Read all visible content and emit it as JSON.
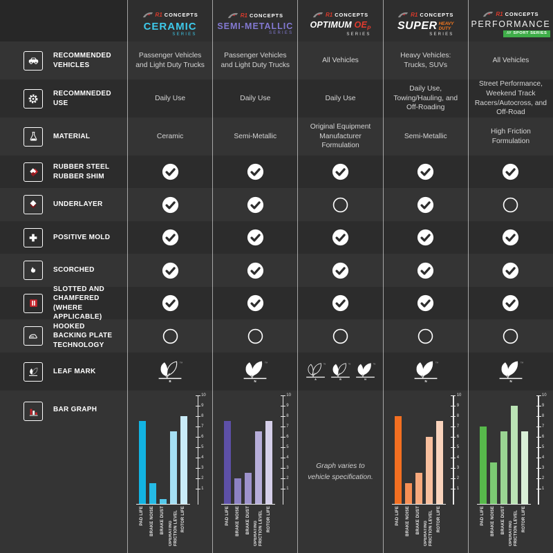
{
  "brand": {
    "logo_r1": "R1",
    "logo_name": "CONCEPTS"
  },
  "leaf_tm": "TM",
  "left_rows": [
    {
      "label": "RECOMMENDED VEHICLES",
      "icon": "car-icon"
    },
    {
      "label": "RECOMMNEDED USE",
      "icon": "gear-icon"
    },
    {
      "label": "MATERIAL",
      "icon": "flask-icon"
    },
    {
      "label": "RUBBER STEEL RUBBER SHIM",
      "icon": "rubber-shim-icon"
    },
    {
      "label": "UNDERLAYER",
      "icon": "underlayer-icon"
    },
    {
      "label": "POSITIVE MOLD",
      "icon": "positive-mold-icon"
    },
    {
      "label": "SCORCHED",
      "icon": "flame-icon"
    },
    {
      "label": "SLOTTED AND CHAMFERED (WHERE APPLICABLE)",
      "icon": "slotted-icon"
    },
    {
      "label": "HOOKED BACKING PLATE TECHNOLOGY",
      "icon": "backing-plate-icon"
    },
    {
      "label": "LEAF MARK",
      "icon": "leaf-icon"
    },
    {
      "label": "BAR GRAPH",
      "icon": "bar-chart-icon"
    }
  ],
  "columns": [
    {
      "title": "CERAMIC",
      "subtitle": "SERIES",
      "accent": "#3ec9ea",
      "vehicles": "Passenger Vehicles and Light Duty Trucks",
      "use": "Daily Use",
      "material": "Ceramic",
      "features": {
        "rubber_shim": true,
        "underlayer": true,
        "positive_mold": true,
        "scorched": true,
        "slotted": true,
        "hooked": false
      },
      "leaf_marks": [
        {
          "style": "half",
          "letter": "B"
        }
      ]
    },
    {
      "title": "SEMI-METALLIC",
      "subtitle": "SERIES",
      "accent": "#8379d2",
      "vehicles": "Passenger Vehicles and Light Duty Trucks",
      "use": "Daily Use",
      "material": "Semi-Metallic",
      "features": {
        "rubber_shim": true,
        "underlayer": true,
        "positive_mold": true,
        "scorched": true,
        "slotted": true,
        "hooked": false
      },
      "leaf_marks": [
        {
          "style": "filled",
          "letter": "N"
        }
      ]
    },
    {
      "title": "OPTIMUM",
      "title_accent": "OE",
      "title_accent_sub": "P",
      "subtitle": "SERIES",
      "accent": "#e23b2e",
      "vehicles": "All Vehicles",
      "use": "Daily Use",
      "material": "Original Equipment Manufacturer Formulation",
      "features": {
        "rubber_shim": true,
        "underlayer": false,
        "positive_mold": true,
        "scorched": true,
        "slotted": true,
        "hooked": false
      },
      "leaf_marks": [
        {
          "style": "outline",
          "letter": "A"
        },
        {
          "style": "half",
          "letter": "B"
        },
        {
          "style": "filled",
          "letter": "N"
        }
      ],
      "graph_note": "Graph varies to vehicle specification."
    },
    {
      "title": "SUPER",
      "heavy": "HEAVY",
      "duty": "DUTY",
      "subtitle": "SERIES",
      "accent": "#f4781f",
      "vehicles": "Heavy Vehicles: Trucks, SUVs",
      "use": "Daily Use, Towing/Hauling, and Off-Roading",
      "material": "Semi-Metallic",
      "features": {
        "rubber_shim": true,
        "underlayer": true,
        "positive_mold": true,
        "scorched": true,
        "slotted": true,
        "hooked": false
      },
      "leaf_marks": [
        {
          "style": "filled",
          "letter": "N"
        }
      ]
    },
    {
      "title": "PERFORMANCE",
      "badge_prefix": "///",
      "badge": "SPORT SERIES",
      "accent": "#3fae49",
      "vehicles": "All Vehicles",
      "use": "Street Performance, Weekend Track Racers/Autocross, and Off-Road",
      "material": "High Friction Formulation",
      "features": {
        "rubber_shim": true,
        "underlayer": false,
        "positive_mold": true,
        "scorched": true,
        "slotted": true,
        "hooked": false
      },
      "leaf_marks": [
        {
          "style": "filled",
          "letter": "N"
        }
      ]
    }
  ],
  "chart_data": [
    {
      "type": "bar",
      "title": "Ceramic Series",
      "categories": [
        "PAD LIFE",
        "BRAKE NOISE",
        "BRAKE DUST",
        "OPERATING FRICTION LEVEL",
        "ROTOR LIFE"
      ],
      "values": [
        8,
        2,
        0.5,
        7,
        8.5
      ],
      "ylim": [
        0,
        10
      ],
      "yticks": [
        1,
        2,
        3,
        4,
        5,
        6,
        7,
        8,
        9,
        10
      ],
      "bar_colors": [
        "#12b3e2",
        "#25bae5",
        "#55c9eb",
        "#a5dff3",
        "#c9ebf8"
      ],
      "axis_side": "right",
      "grid": false,
      "x_tick_rotation": 90
    },
    {
      "type": "bar",
      "title": "Semi-Metallic Series",
      "categories": [
        "PAD LIFE",
        "BRAKE NOISE",
        "BRAKE DUST",
        "OPERATING FRICTION LEVEL",
        "ROTOR LIFE"
      ],
      "values": [
        8,
        2.5,
        3,
        7,
        8
      ],
      "ylim": [
        0,
        10
      ],
      "yticks": [
        1,
        2,
        3,
        4,
        5,
        6,
        7,
        8,
        9,
        10
      ],
      "bar_colors": [
        "#5d50a7",
        "#8d82c3",
        "#9d92cb",
        "#b6add9",
        "#d5cfe9"
      ],
      "axis_side": "right",
      "grid": false,
      "x_tick_rotation": 90
    },
    {
      "type": "note",
      "title": "Optimum OEp Series",
      "note": "Graph varies to vehicle specification."
    },
    {
      "type": "bar",
      "title": "Super Heavy Duty Series",
      "categories": [
        "PAD LIFE",
        "BRAKE NOISE",
        "BRAKE DUST",
        "OPERATING FRICTION LEVEL",
        "ROTOR LIFE"
      ],
      "values": [
        8.5,
        2,
        3,
        6.5,
        8
      ],
      "ylim": [
        0,
        10
      ],
      "yticks": [
        1,
        2,
        3,
        4,
        5,
        6,
        7,
        8,
        9,
        10
      ],
      "bar_colors": [
        "#f36f21",
        "#f68f55",
        "#f7a97d",
        "#f8bf9e",
        "#f9d3bc"
      ],
      "axis_side": "right",
      "grid": false,
      "x_tick_rotation": 90
    },
    {
      "type": "bar",
      "title": "Performance Sport Series",
      "categories": [
        "PAD LIFE",
        "BRAKE NOISE",
        "BRAKE DUST",
        "OPERATING FRICTION LEVEL",
        "ROTOR LIFE"
      ],
      "values": [
        7.5,
        4,
        7,
        9.5,
        7
      ],
      "ylim": [
        0,
        10
      ],
      "yticks": [
        1,
        2,
        3,
        4,
        5,
        6,
        7,
        8,
        9,
        10
      ],
      "bar_colors": [
        "#57b94b",
        "#7cc973",
        "#9ad492",
        "#bae3b4",
        "#d9efd6"
      ],
      "axis_side": "right",
      "grid": false,
      "x_tick_rotation": 90
    }
  ]
}
